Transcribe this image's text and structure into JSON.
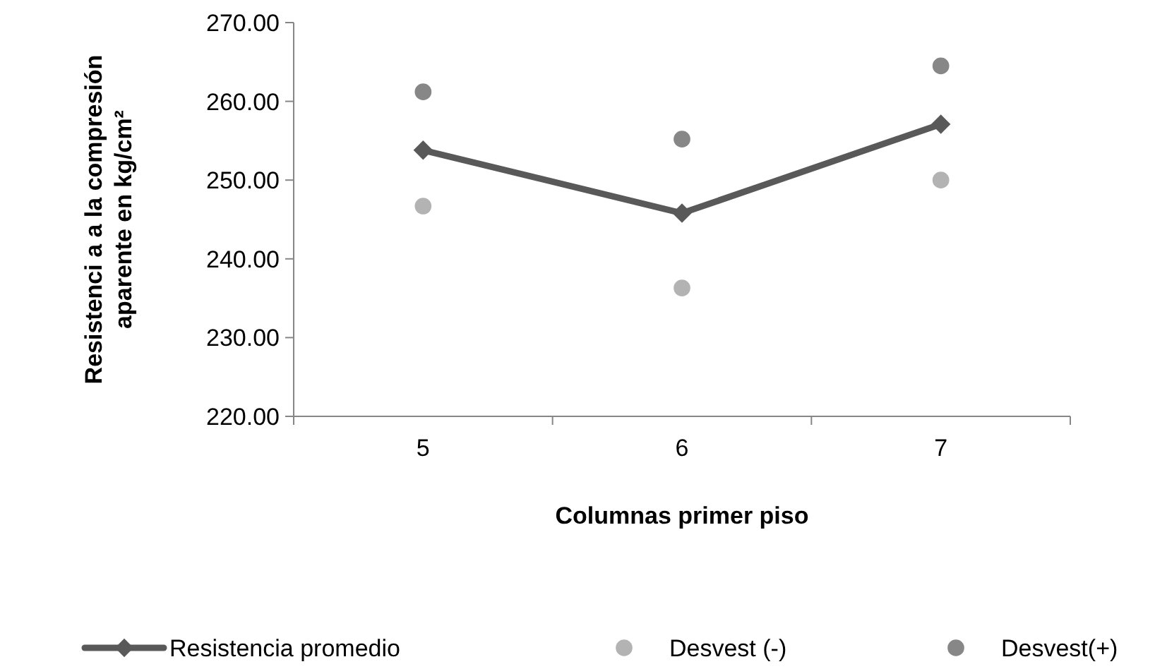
{
  "chart_data": {
    "type": "line",
    "xlabel": "Columnas primer piso",
    "ylabel": "Resistenci a a la compresión aparente en kg/cm²",
    "categories": [
      "5",
      "6",
      "7"
    ],
    "ylim": [
      220,
      270
    ],
    "yticks": [
      {
        "value": 220,
        "label": "220.00"
      },
      {
        "value": 230,
        "label": "230.00"
      },
      {
        "value": 240,
        "label": "240.00"
      },
      {
        "value": 250,
        "label": "250.00"
      },
      {
        "value": 260,
        "label": "260.00"
      },
      {
        "value": 270,
        "label": "270.00"
      }
    ],
    "grid": false,
    "legend": "bottom",
    "series": [
      {
        "name": "Resistencia promedio",
        "color": "#595959",
        "marker": "diamond",
        "line_style": "solid",
        "values": [
          253.8,
          245.8,
          257.1
        ]
      },
      {
        "name": "Desvest (-)",
        "type": "scatter",
        "color": "#b3b3b3",
        "marker": "circle",
        "values": [
          246.7,
          236.3,
          250.0
        ]
      },
      {
        "name": "Desvest(+)",
        "type": "scatter",
        "color": "#878787",
        "marker": "circle",
        "values": [
          261.2,
          255.2,
          264.5
        ]
      }
    ]
  }
}
